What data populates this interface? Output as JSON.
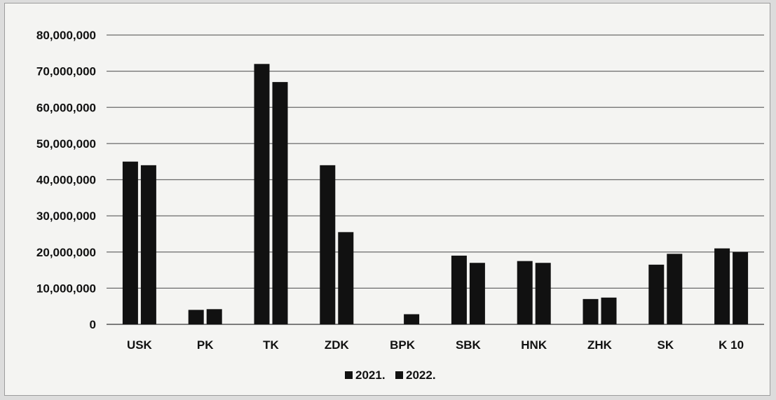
{
  "chart_data": {
    "type": "bar",
    "categories": [
      "USK",
      "PK",
      "TK",
      "ZDK",
      "BPK",
      "SBK",
      "HNK",
      "ZHK",
      "SK",
      "K 10"
    ],
    "series": [
      {
        "name": "2021.",
        "color": "#111111",
        "values": [
          45000000,
          4000000,
          72000000,
          44000000,
          0,
          19000000,
          17500000,
          7000000,
          16500000,
          21000000
        ]
      },
      {
        "name": "2022.",
        "color": "#111111",
        "values": [
          44000000,
          4200000,
          67000000,
          25500000,
          2800000,
          17000000,
          17000000,
          7400000,
          19500000,
          20000000
        ]
      }
    ],
    "ylim": [
      0,
      80000000
    ],
    "y_ticks": [
      0,
      10000000,
      20000000,
      30000000,
      40000000,
      50000000,
      60000000,
      70000000,
      80000000
    ],
    "y_tick_labels": [
      "0",
      "10,000,000",
      "20,000,000",
      "30,000,000",
      "40,000,000",
      "50,000,000",
      "60,000,000",
      "70,000,000",
      "80,000,000"
    ],
    "grid": true,
    "legend_position": "bottom"
  }
}
